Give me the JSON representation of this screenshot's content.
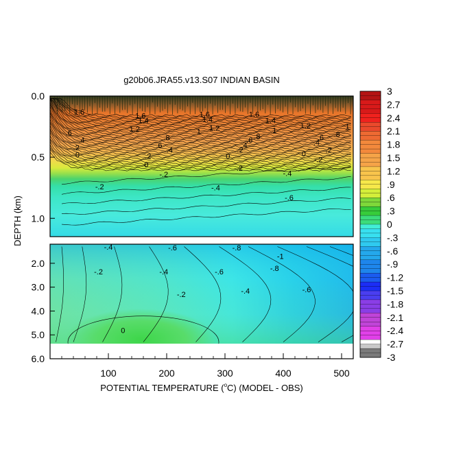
{
  "chart_data": {
    "type": "heatmap",
    "title": "g20b06.JRA55.v13.S07 INDIAN BASIN",
    "xlabel_parts": [
      "POTENTIAL TEMPERATURE (",
      "o",
      "C) (MODEL - OBS)"
    ],
    "ylabel": "DEPTH (km)",
    "xlim": [
      0,
      520
    ],
    "x_ticks": [
      100,
      200,
      300,
      400,
      500
    ],
    "x_tick_labels": [
      "100",
      "200",
      "300",
      "400",
      "500"
    ],
    "upper_panel": {
      "ylim": [
        0.0,
        1.15
      ],
      "y_ticks": [
        0.0,
        0.5,
        1.0
      ],
      "y_tick_labels": [
        "0.0",
        "0.5",
        "1.0"
      ]
    },
    "lower_panel": {
      "ylim": [
        1.2,
        6.0
      ],
      "y_ticks": [
        2.0,
        3.0,
        4.0,
        5.0,
        6.0
      ],
      "y_tick_labels": [
        "2.0",
        "3.0",
        "4.0",
        "5.0",
        "6.0"
      ]
    },
    "colorbar": {
      "min": -3,
      "max": 3,
      "step": 0.1,
      "ticks": [
        3,
        2.7,
        2.4,
        2.1,
        1.8,
        1.5,
        1.2,
        0.9,
        0.6,
        0.3,
        0,
        -0.3,
        -0.6,
        -0.9,
        -1.2,
        -1.5,
        -1.8,
        -2.1,
        -2.4,
        -2.7,
        -3
      ],
      "tick_labels": [
        "3",
        "2.7",
        "2.4",
        "2.1",
        "1.8",
        "1.5",
        "1.2",
        ".9",
        ".6",
        ".3",
        "0",
        "-.3",
        "-.6",
        "-.9",
        "-1.2",
        "-1.5",
        "-1.8",
        "-2.1",
        "-2.4",
        "-2.7",
        "-3"
      ]
    },
    "contour_labels": [
      {
        "text": "1.6",
        "x": 50,
        "y": 0.13
      },
      {
        "text": "1.6",
        "x": 155,
        "y": 0.16
      },
      {
        "text": "1.6",
        "x": 265,
        "y": 0.15
      },
      {
        "text": "1.6",
        "x": 350,
        "y": 0.15
      },
      {
        "text": "1.4",
        "x": 160,
        "y": 0.2
      },
      {
        "text": "1.4",
        "x": 270,
        "y": 0.19
      },
      {
        "text": "1.4",
        "x": 378,
        "y": 0.2
      },
      {
        "text": "1.2",
        "x": 145,
        "y": 0.27
      },
      {
        "text": "1.2",
        "x": 282,
        "y": 0.26
      },
      {
        "text": "1.2",
        "x": 438,
        "y": 0.24
      },
      {
        "text": "1",
        "x": 255,
        "y": 0.29
      },
      {
        "text": "1",
        "x": 385,
        "y": 0.28
      },
      {
        "text": "1",
        "x": 510,
        "y": 0.25
      },
      {
        "text": ".8",
        "x": 200,
        "y": 0.34
      },
      {
        "text": ".8",
        "x": 355,
        "y": 0.33
      },
      {
        "text": ".8",
        "x": 492,
        "y": 0.31
      },
      {
        "text": ".6",
        "x": 32,
        "y": 0.3
      },
      {
        "text": ".6",
        "x": 187,
        "y": 0.4
      },
      {
        "text": ".6",
        "x": 342,
        "y": 0.36
      },
      {
        "text": ".6",
        "x": 464,
        "y": 0.34
      },
      {
        "text": ".4",
        "x": 54,
        "y": 0.36
      },
      {
        "text": ".4",
        "x": 205,
        "y": 0.44
      },
      {
        "text": ".4",
        "x": 333,
        "y": 0.4
      },
      {
        "text": ".4",
        "x": 457,
        "y": 0.38
      },
      {
        "text": ".2",
        "x": 45,
        "y": 0.42
      },
      {
        "text": ".2",
        "x": 168,
        "y": 0.49
      },
      {
        "text": ".2",
        "x": 326,
        "y": 0.44
      },
      {
        "text": ".2",
        "x": 478,
        "y": 0.44
      },
      {
        "text": "0",
        "x": 47,
        "y": 0.48
      },
      {
        "text": "0",
        "x": 165,
        "y": 0.56
      },
      {
        "text": "0",
        "x": 305,
        "y": 0.49
      },
      {
        "text": "0",
        "x": 435,
        "y": 0.47
      },
      {
        "text": "-.2",
        "x": 195,
        "y": 0.64
      },
      {
        "text": "-.2",
        "x": 323,
        "y": 0.59
      },
      {
        "text": "-.2",
        "x": 460,
        "y": 0.52
      },
      {
        "text": "-.2",
        "x": 85,
        "y": 0.74
      },
      {
        "text": "-.4",
        "x": 284,
        "y": 0.75
      },
      {
        "text": "-.4",
        "x": 407,
        "y": 0.63
      },
      {
        "text": "-.6",
        "x": 410,
        "y": 0.83
      },
      {
        "text": "-.4",
        "x": 100,
        "y": 1.32
      },
      {
        "text": "-.6",
        "x": 210,
        "y": 1.34
      },
      {
        "text": "-.8",
        "x": 320,
        "y": 1.35
      },
      {
        "text": "-1",
        "x": 395,
        "y": 1.7
      },
      {
        "text": "-.2",
        "x": 83,
        "y": 2.35
      },
      {
        "text": "-.4",
        "x": 195,
        "y": 2.35
      },
      {
        "text": "-.6",
        "x": 290,
        "y": 2.35
      },
      {
        "text": "-.8",
        "x": 385,
        "y": 2.2
      },
      {
        "text": "-.2",
        "x": 225,
        "y": 3.3
      },
      {
        "text": "-.4",
        "x": 335,
        "y": 3.15
      },
      {
        "text": "-.6",
        "x": 440,
        "y": 3.1
      },
      {
        "text": "0",
        "x": 125,
        "y": 4.8
      }
    ]
  }
}
